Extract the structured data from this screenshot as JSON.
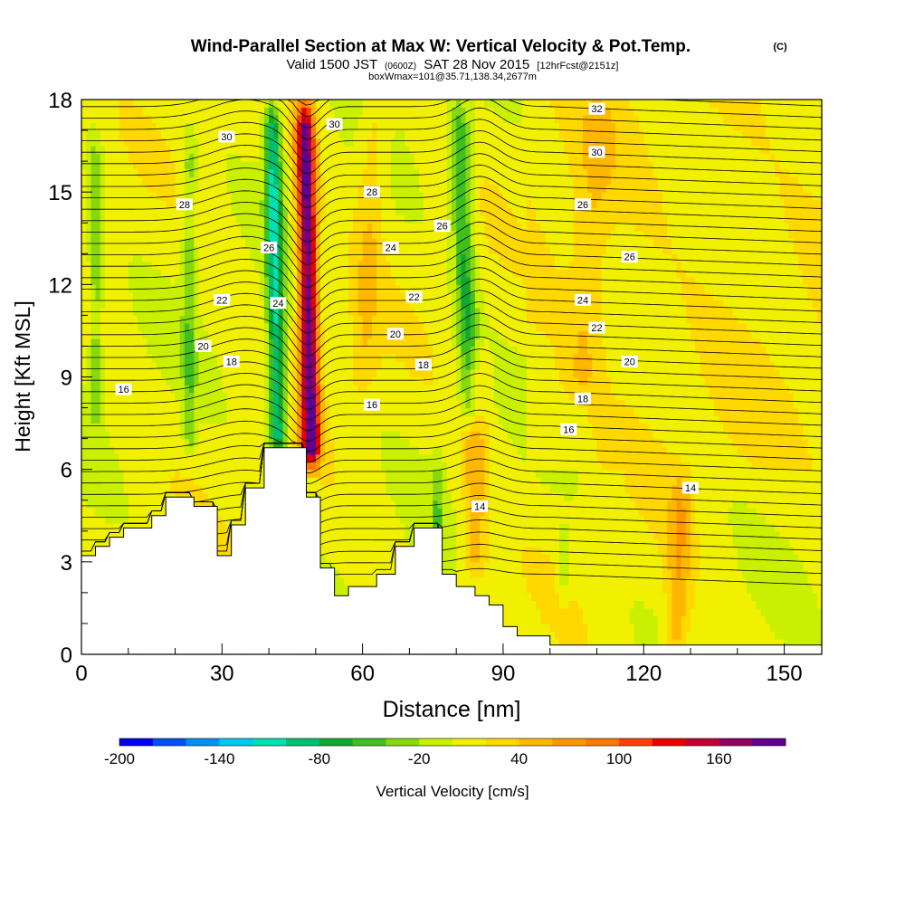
{
  "header": {
    "title": "Wind-Parallel Section at Max W: Vertical Velocity & Pot.Temp.",
    "copyright": "(C)",
    "valid_prefix": "Valid 1500 JST",
    "utc": "(0600Z)",
    "valid_date": "SAT 28 Nov 2015",
    "forecast": "[12hrFcst@2151z]",
    "box_info": "boxWmax=101@35.71,138.34,2677m"
  },
  "chart_data": {
    "type": "heatmap",
    "title": "Wind-Parallel Section at Max W: Vertical Velocity & Pot.Temp.",
    "xlabel": "Distance [nm]",
    "ylabel": "Height [Kft MSL]",
    "xlim": [
      0,
      158
    ],
    "ylim": [
      0,
      18
    ],
    "x_ticks": [
      "0",
      "30",
      "60",
      "90",
      "120",
      "150"
    ],
    "x_tick_values": [
      0,
      30,
      60,
      90,
      120,
      150
    ],
    "y_ticks": [
      "0",
      "3",
      "6",
      "9",
      "12",
      "15",
      "18"
    ],
    "y_tick_values": [
      0,
      3,
      6,
      9,
      12,
      15,
      18
    ],
    "grid": false,
    "colorbar": {
      "label": "Vertical Velocity [cm/s]",
      "min": -200,
      "max": 200,
      "step": 20,
      "tick_labels": [
        "-200",
        "-140",
        "-80",
        "-20",
        "40",
        "100",
        "160"
      ],
      "tick_values": [
        -200,
        -140,
        -80,
        -20,
        40,
        100,
        160
      ],
      "colors": [
        "#0000f0",
        "#0050f0",
        "#0090f0",
        "#00c8f0",
        "#00e0b0",
        "#00c070",
        "#10a830",
        "#40c020",
        "#88d810",
        "#c8f000",
        "#f0f000",
        "#ffd800",
        "#ffb800",
        "#ff9800",
        "#ff7800",
        "#ff4000",
        "#e80000",
        "#c00030",
        "#900060",
        "#600090"
      ]
    },
    "terrain": [
      [
        0,
        3.2
      ],
      [
        3,
        3.2
      ],
      [
        3,
        3.5
      ],
      [
        6,
        3.5
      ],
      [
        6,
        3.8
      ],
      [
        9,
        3.8
      ],
      [
        9,
        4.1
      ],
      [
        15,
        4.1
      ],
      [
        15,
        4.5
      ],
      [
        18,
        4.5
      ],
      [
        18,
        5.1
      ],
      [
        24,
        5.1
      ],
      [
        24,
        4.8
      ],
      [
        29,
        4.8
      ],
      [
        29,
        3.2
      ],
      [
        32,
        3.2
      ],
      [
        32,
        4.2
      ],
      [
        35,
        4.2
      ],
      [
        35,
        5.4
      ],
      [
        39,
        5.4
      ],
      [
        39,
        6.7
      ],
      [
        48,
        6.7
      ],
      [
        48,
        5.1
      ],
      [
        51,
        5.1
      ],
      [
        51,
        2.8
      ],
      [
        54,
        2.8
      ],
      [
        54,
        1.9
      ],
      [
        57,
        1.9
      ],
      [
        57,
        2.2
      ],
      [
        63,
        2.2
      ],
      [
        63,
        2.6
      ],
      [
        67,
        2.6
      ],
      [
        67,
        3.5
      ],
      [
        71,
        3.5
      ],
      [
        71,
        4.1
      ],
      [
        77,
        4.1
      ],
      [
        77,
        2.6
      ],
      [
        80,
        2.6
      ],
      [
        80,
        2.2
      ],
      [
        84,
        2.2
      ],
      [
        84,
        1.9
      ],
      [
        87,
        1.9
      ],
      [
        87,
        1.6
      ],
      [
        90,
        1.6
      ],
      [
        90,
        0.9
      ],
      [
        93,
        0.9
      ],
      [
        93,
        0.6
      ],
      [
        100,
        0.6
      ],
      [
        100,
        0.3
      ],
      [
        158,
        0.3
      ]
    ],
    "updrafts": [
      {
        "x": 49,
        "zmin": 6.7,
        "zmax": 18,
        "lean": -0.12,
        "w": 185,
        "width": 2.0
      },
      {
        "x": 84,
        "zmin": 3.0,
        "zmax": 10,
        "lean": 0.0,
        "w": 45,
        "width": 2.5
      },
      {
        "x": 60,
        "zmin": 9.0,
        "zmax": 18,
        "lean": 0.3,
        "w": 30,
        "width": 3.0
      },
      {
        "x": 107,
        "zmin": 9.0,
        "zmax": 18,
        "lean": 0.4,
        "w": 25,
        "width": 4.0
      },
      {
        "x": 127,
        "zmin": 0.5,
        "zmax": 6.0,
        "lean": 0.2,
        "w": 45,
        "width": 2.5
      }
    ],
    "downdrafts": [
      {
        "x": 42,
        "zmin": 7.0,
        "zmax": 18,
        "lean": -0.12,
        "w": -110,
        "width": 1.8
      },
      {
        "x": 83,
        "zmin": 8.0,
        "zmax": 18,
        "lean": -0.25,
        "w": -70,
        "width": 2.2
      },
      {
        "x": 23,
        "zmin": 7.0,
        "zmax": 17,
        "lean": 0.0,
        "w": -40,
        "width": 1.5
      },
      {
        "x": 3,
        "zmin": 8.0,
        "zmax": 17,
        "lean": 0.0,
        "w": -40,
        "width": 1.5
      },
      {
        "x": 103,
        "zmin": 2.5,
        "zmax": 4.0,
        "lean": 0.0,
        "w": -40,
        "width": 1.2
      },
      {
        "x": 76,
        "zmin": 3.5,
        "zmax": 6.5,
        "lean": 0.0,
        "w": -40,
        "width": 1.2
      }
    ],
    "isentropes": {
      "values": [
        14,
        16,
        18,
        20,
        22,
        24,
        26,
        28,
        30,
        32
      ],
      "labels": [
        "14",
        "16",
        "18",
        "20",
        "22",
        "24",
        "26",
        "28",
        "30",
        "32"
      ],
      "label_positions": [
        {
          "text": "16",
          "x": 9,
          "y": 8.6
        },
        {
          "text": "20",
          "x": 26,
          "y": 10.0
        },
        {
          "text": "18",
          "x": 32,
          "y": 9.5
        },
        {
          "text": "22",
          "x": 30,
          "y": 11.5
        },
        {
          "text": "28",
          "x": 22,
          "y": 14.6
        },
        {
          "text": "30",
          "x": 31,
          "y": 16.8
        },
        {
          "text": "26",
          "x": 40,
          "y": 13.2
        },
        {
          "text": "24",
          "x": 42,
          "y": 11.4
        },
        {
          "text": "30",
          "x": 54,
          "y": 17.2
        },
        {
          "text": "28",
          "x": 62,
          "y": 15.0
        },
        {
          "text": "24",
          "x": 66,
          "y": 13.2
        },
        {
          "text": "22",
          "x": 71,
          "y": 11.6
        },
        {
          "text": "20",
          "x": 67,
          "y": 10.4
        },
        {
          "text": "18",
          "x": 73,
          "y": 9.4
        },
        {
          "text": "16",
          "x": 62,
          "y": 8.1
        },
        {
          "text": "26",
          "x": 77,
          "y": 13.9
        },
        {
          "text": "14",
          "x": 85,
          "y": 4.8
        },
        {
          "text": "32",
          "x": 110,
          "y": 17.7
        },
        {
          "text": "30",
          "x": 110,
          "y": 16.3
        },
        {
          "text": "26",
          "x": 107,
          "y": 14.6
        },
        {
          "text": "26",
          "x": 117,
          "y": 12.9
        },
        {
          "text": "24",
          "x": 107,
          "y": 11.5
        },
        {
          "text": "22",
          "x": 110,
          "y": 10.6
        },
        {
          "text": "20",
          "x": 117,
          "y": 9.5
        },
        {
          "text": "18",
          "x": 107,
          "y": 8.3
        },
        {
          "text": "16",
          "x": 104,
          "y": 7.3
        },
        {
          "text": "14",
          "x": 130,
          "y": 5.4
        }
      ]
    }
  }
}
